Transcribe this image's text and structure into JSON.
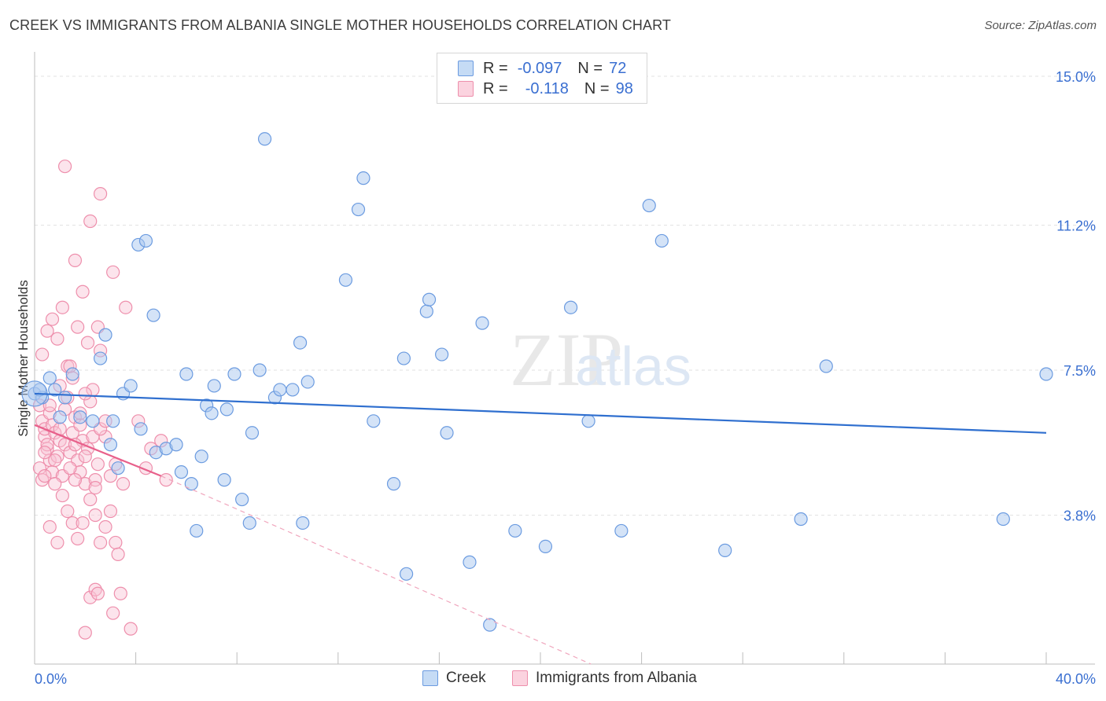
{
  "title": "CREEK VS IMMIGRANTS FROM ALBANIA SINGLE MOTHER HOUSEHOLDS CORRELATION CHART",
  "source": "Source: ZipAtlas.com",
  "watermark": {
    "zip": "ZIP",
    "atlas": "atlas"
  },
  "legend": {
    "rows": [
      {
        "r_label": "R =",
        "r_value": "-0.097",
        "n_label": "N =",
        "n_value": "72",
        "color": "#aac8f0",
        "border": "#6b9be0"
      },
      {
        "r_label": "R =",
        "r_value": "-0.118",
        "n_label": "N =",
        "n_value": "98",
        "color": "#f9c4d4",
        "border": "#ee8fac"
      }
    ]
  },
  "bottom_legend": {
    "series1": "Creek",
    "series2": "Immigrants from Albania"
  },
  "chart_data": {
    "type": "scatter",
    "title": "CREEK VS IMMIGRANTS FROM ALBANIA SINGLE MOTHER HOUSEHOLDS CORRELATION CHART",
    "xlabel": "",
    "ylabel": "Single Mother Households",
    "xlim": [
      0,
      40
    ],
    "ylim": [
      0,
      15.5
    ],
    "x_tick_labels": [
      "0.0%",
      "40.0%"
    ],
    "y_ticks": [
      3.8,
      7.5,
      11.2,
      15.0
    ],
    "y_tick_labels": [
      "3.8%",
      "7.5%",
      "11.2%",
      "15.0%"
    ],
    "grid": true,
    "series": [
      {
        "name": "Creek",
        "color": "#6b9be0",
        "fill": "#aac8f0",
        "trend": {
          "x": [
            0,
            40
          ],
          "y": [
            6.9,
            5.9
          ],
          "color": "#2f6fcf"
        },
        "points": [
          [
            0.0,
            6.9
          ],
          [
            0.3,
            6.8
          ],
          [
            0.6,
            7.3
          ],
          [
            0.8,
            7.0
          ],
          [
            1.0,
            6.3
          ],
          [
            1.2,
            6.8
          ],
          [
            1.5,
            7.4
          ],
          [
            1.8,
            6.3
          ],
          [
            2.3,
            6.2
          ],
          [
            2.6,
            7.8
          ],
          [
            2.8,
            8.4
          ],
          [
            3.0,
            5.6
          ],
          [
            3.1,
            6.2
          ],
          [
            3.3,
            5.0
          ],
          [
            3.5,
            6.9
          ],
          [
            3.8,
            7.1
          ],
          [
            4.1,
            10.7
          ],
          [
            4.2,
            6.0
          ],
          [
            4.4,
            10.8
          ],
          [
            4.7,
            8.9
          ],
          [
            4.8,
            5.4
          ],
          [
            5.2,
            5.5
          ],
          [
            5.6,
            5.6
          ],
          [
            5.8,
            4.9
          ],
          [
            6.0,
            7.4
          ],
          [
            6.2,
            4.6
          ],
          [
            6.4,
            3.4
          ],
          [
            6.6,
            5.3
          ],
          [
            6.8,
            6.6
          ],
          [
            7.0,
            6.4
          ],
          [
            7.1,
            7.1
          ],
          [
            7.5,
            4.7
          ],
          [
            7.6,
            6.5
          ],
          [
            7.9,
            7.4
          ],
          [
            8.2,
            4.2
          ],
          [
            8.5,
            3.6
          ],
          [
            8.6,
            5.9
          ],
          [
            8.9,
            7.5
          ],
          [
            9.1,
            13.4
          ],
          [
            9.5,
            6.8
          ],
          [
            9.7,
            7.0
          ],
          [
            10.2,
            7.0
          ],
          [
            10.5,
            8.2
          ],
          [
            10.6,
            3.6
          ],
          [
            10.8,
            7.2
          ],
          [
            12.3,
            9.8
          ],
          [
            12.8,
            11.6
          ],
          [
            13.0,
            12.4
          ],
          [
            13.4,
            6.2
          ],
          [
            14.2,
            4.6
          ],
          [
            14.6,
            7.8
          ],
          [
            14.7,
            2.3
          ],
          [
            15.5,
            9.0
          ],
          [
            15.6,
            9.3
          ],
          [
            16.1,
            7.9
          ],
          [
            16.3,
            5.9
          ],
          [
            17.2,
            2.6
          ],
          [
            17.7,
            8.7
          ],
          [
            18.0,
            1.0
          ],
          [
            19.0,
            3.4
          ],
          [
            20.2,
            3.0
          ],
          [
            21.2,
            9.1
          ],
          [
            21.9,
            6.2
          ],
          [
            23.2,
            3.4
          ],
          [
            24.3,
            11.7
          ],
          [
            24.8,
            10.8
          ],
          [
            27.3,
            2.9
          ],
          [
            30.3,
            3.7
          ],
          [
            31.3,
            7.6
          ],
          [
            38.3,
            3.7
          ],
          [
            40.0,
            7.4
          ],
          [
            0.2,
            7.0
          ]
        ]
      },
      {
        "name": "Immigrants from Albania",
        "color": "#ee8fac",
        "fill": "#f9c4d4",
        "trend": {
          "x": [
            0,
            5.0
          ],
          "y": [
            6.1,
            4.8
          ],
          "color": "#e8608b"
        },
        "trend_extension": {
          "x": [
            5.0,
            22.0
          ],
          "y": [
            4.8,
            0.0
          ],
          "color": "#f0a6bd"
        },
        "points": [
          [
            0.2,
            6.6
          ],
          [
            0.3,
            6.2
          ],
          [
            0.4,
            5.8
          ],
          [
            0.5,
            5.5
          ],
          [
            0.6,
            5.2
          ],
          [
            0.7,
            4.9
          ],
          [
            0.2,
            5.0
          ],
          [
            0.3,
            4.7
          ],
          [
            0.4,
            6.0
          ],
          [
            0.5,
            5.6
          ],
          [
            0.6,
            6.4
          ],
          [
            0.7,
            6.1
          ],
          [
            0.8,
            5.9
          ],
          [
            0.9,
            5.3
          ],
          [
            1.0,
            5.7
          ],
          [
            1.1,
            4.8
          ],
          [
            1.2,
            5.6
          ],
          [
            1.3,
            6.8
          ],
          [
            1.4,
            5.4
          ],
          [
            1.5,
            5.9
          ],
          [
            1.6,
            6.3
          ],
          [
            1.7,
            5.2
          ],
          [
            1.8,
            4.9
          ],
          [
            1.9,
            5.7
          ],
          [
            2.0,
            4.6
          ],
          [
            2.1,
            5.5
          ],
          [
            2.2,
            6.7
          ],
          [
            2.3,
            5.8
          ],
          [
            2.4,
            4.7
          ],
          [
            2.5,
            5.1
          ],
          [
            0.3,
            7.9
          ],
          [
            0.5,
            8.5
          ],
          [
            0.7,
            8.8
          ],
          [
            0.9,
            8.3
          ],
          [
            1.1,
            9.1
          ],
          [
            1.3,
            7.6
          ],
          [
            1.5,
            7.3
          ],
          [
            1.7,
            8.6
          ],
          [
            1.9,
            9.5
          ],
          [
            2.1,
            8.2
          ],
          [
            2.3,
            7.0
          ],
          [
            2.5,
            8.6
          ],
          [
            2.6,
            8.0
          ],
          [
            1.2,
            12.7
          ],
          [
            2.6,
            12.0
          ],
          [
            2.2,
            11.3
          ],
          [
            1.6,
            10.3
          ],
          [
            3.1,
            10.0
          ],
          [
            3.6,
            9.1
          ],
          [
            1.1,
            4.3
          ],
          [
            1.3,
            3.9
          ],
          [
            1.5,
            3.6
          ],
          [
            1.7,
            3.2
          ],
          [
            1.9,
            3.6
          ],
          [
            2.2,
            4.2
          ],
          [
            2.4,
            3.8
          ],
          [
            2.6,
            3.1
          ],
          [
            2.8,
            3.5
          ],
          [
            3.0,
            3.9
          ],
          [
            3.2,
            3.1
          ],
          [
            3.3,
            2.8
          ],
          [
            0.6,
            3.5
          ],
          [
            0.9,
            3.1
          ],
          [
            2.2,
            1.7
          ],
          [
            2.4,
            1.9
          ],
          [
            2.5,
            1.8
          ],
          [
            3.4,
            1.8
          ],
          [
            3.1,
            1.3
          ],
          [
            2.0,
            0.8
          ],
          [
            3.8,
            0.9
          ],
          [
            2.8,
            5.8
          ],
          [
            3.2,
            5.1
          ],
          [
            3.5,
            4.6
          ],
          [
            4.1,
            6.2
          ],
          [
            4.4,
            5.0
          ],
          [
            4.6,
            5.5
          ],
          [
            5.0,
            5.7
          ],
          [
            5.2,
            4.7
          ],
          [
            0.4,
            5.4
          ],
          [
            0.8,
            4.6
          ],
          [
            1.0,
            6.0
          ],
          [
            1.4,
            5.0
          ],
          [
            1.6,
            5.6
          ],
          [
            1.8,
            6.1
          ],
          [
            2.0,
            5.3
          ],
          [
            2.6,
            6.0
          ],
          [
            2.8,
            6.2
          ],
          [
            3.0,
            4.8
          ],
          [
            0.6,
            6.6
          ],
          [
            1.0,
            7.1
          ],
          [
            1.2,
            6.5
          ],
          [
            1.4,
            7.6
          ],
          [
            1.8,
            6.4
          ],
          [
            2.0,
            6.9
          ],
          [
            0.4,
            4.8
          ],
          [
            0.8,
            5.2
          ],
          [
            1.6,
            4.7
          ],
          [
            2.4,
            4.5
          ]
        ]
      }
    ]
  }
}
